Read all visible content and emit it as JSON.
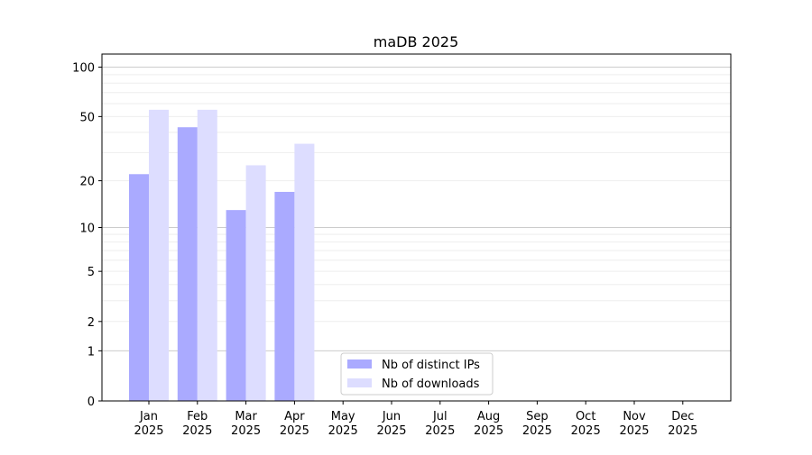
{
  "chart_data": {
    "type": "bar",
    "title": "maDB 2025",
    "xlabel": "",
    "ylabel": "",
    "categories": [
      [
        "Jan",
        "2025"
      ],
      [
        "Feb",
        "2025"
      ],
      [
        "Mar",
        "2025"
      ],
      [
        "Apr",
        "2025"
      ],
      [
        "May",
        "2025"
      ],
      [
        "Jun",
        "2025"
      ],
      [
        "Jul",
        "2025"
      ],
      [
        "Aug",
        "2025"
      ],
      [
        "Sep",
        "2025"
      ],
      [
        "Oct",
        "2025"
      ],
      [
        "Nov",
        "2025"
      ],
      [
        "Dec",
        "2025"
      ]
    ],
    "series": [
      {
        "name": "Nb of distinct IPs",
        "color": "#aaaaff",
        "values": [
          22,
          43,
          13,
          17,
          null,
          null,
          null,
          null,
          null,
          null,
          null,
          null
        ]
      },
      {
        "name": "Nb of downloads",
        "color": "#ddddff",
        "values": [
          55,
          55,
          25,
          34,
          null,
          null,
          null,
          null,
          null,
          null,
          null,
          null
        ]
      }
    ],
    "y_scale": "log(1+y)",
    "ylim": [
      0,
      120
    ],
    "y_ticks": [
      0,
      1,
      2,
      5,
      10,
      20,
      50,
      100
    ],
    "grid": true,
    "legend_position": "lower center"
  }
}
